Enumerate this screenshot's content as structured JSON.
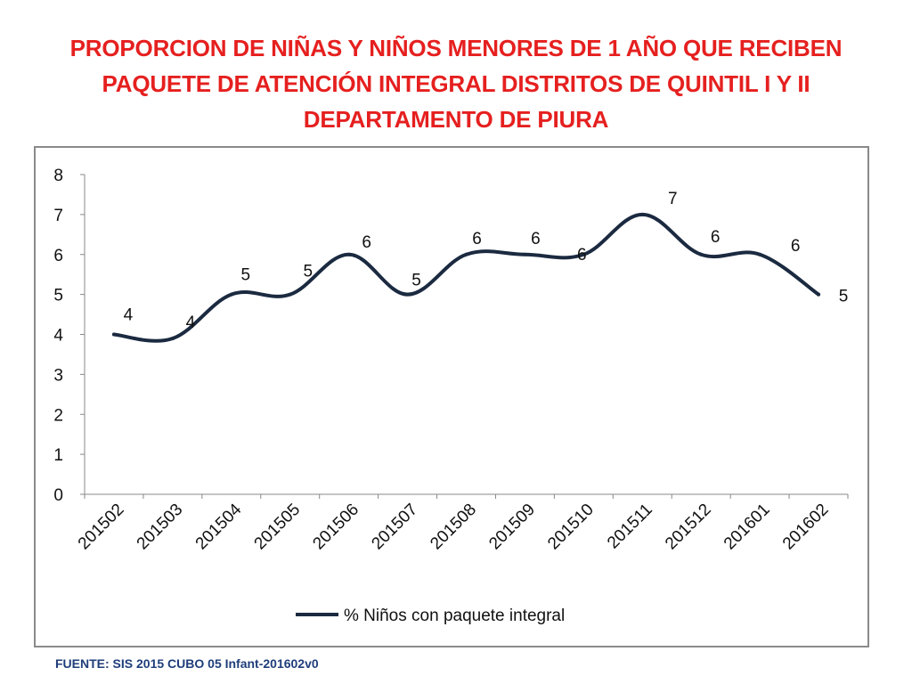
{
  "slide": {
    "title": "PROPORCION DE NIÑAS Y NIÑOS MENORES DE 1 AÑO QUE RECIBEN PAQUETE DE ATENCIÓN INTEGRAL  DISTRITOS DE QUINTIL I Y II DEPARTAMENTO DE PIURA",
    "source": "FUENTE: SIS 2015 CUBO 05 Infant-201602v0"
  },
  "colors": {
    "title": "#e5201f",
    "line": "#1b2a40",
    "source": "#1f3d7a",
    "frame": "#8a8a8a"
  },
  "chart_data": {
    "type": "line",
    "smooth": true,
    "title": "",
    "xlabel": "",
    "ylabel": "",
    "categories": [
      "201502",
      "201503",
      "201504",
      "201505",
      "201506",
      "201507",
      "201508",
      "201509",
      "201510",
      "201511",
      "201512",
      "201601",
      "201602"
    ],
    "series": [
      {
        "name": "% Niños con paquete integral",
        "values": [
          4,
          3.9,
          5,
          5,
          6,
          5,
          6,
          6,
          6,
          7,
          6,
          6,
          5
        ],
        "labels": [
          "4",
          "4",
          "5",
          "5",
          "6",
          "5",
          "6",
          "6",
          "6",
          "7",
          "6",
          "6",
          "5"
        ]
      }
    ],
    "ylim": [
      0,
      8
    ],
    "yticks": [
      0,
      1,
      2,
      3,
      4,
      5,
      6,
      7,
      8
    ],
    "grid": false,
    "legend": "bottom"
  }
}
